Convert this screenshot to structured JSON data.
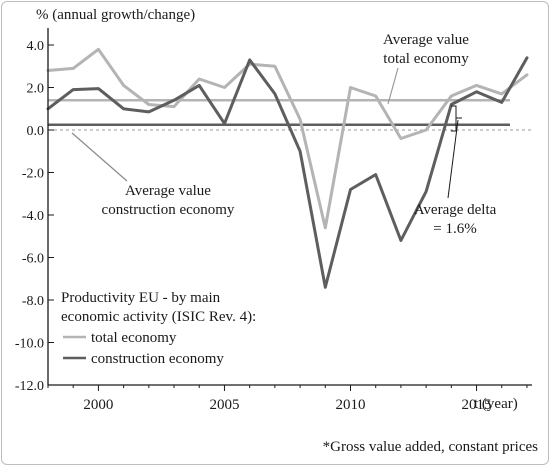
{
  "chart_data": {
    "type": "line",
    "ylabel": "% (annual growth/change)",
    "xlabel": "t (year)",
    "footnote": "*Gross value added, constant prices",
    "ylim": [
      -12.0,
      4.8
    ],
    "xlim": [
      1998,
      2017.2
    ],
    "y_ticks": [
      4.0,
      2.0,
      0.0,
      -2.0,
      -4.0,
      -6.0,
      -8.0,
      -10.0,
      -12.0
    ],
    "y_tick_labels": [
      "4.0",
      "2.0",
      "0.0",
      "-2.0",
      "-4.0",
      "-6.0",
      "-8.0",
      "-10.0",
      "-12.0"
    ],
    "x_ticks": [
      2000,
      2005,
      2010,
      2015
    ],
    "x_tick_labels": [
      "2000",
      "2005",
      "2010",
      "2015"
    ],
    "grid": false,
    "legend": {
      "title_line1": "Productivity EU - by main",
      "title_line2": "economic activity (ISIC Rev. 4):",
      "placement": "bottom-left"
    },
    "x": [
      1998,
      1999,
      2000,
      2001,
      2002,
      2003,
      2004,
      2005,
      2006,
      2007,
      2008,
      2009,
      2010,
      2011,
      2012,
      2013,
      2014,
      2015,
      2016,
      2017
    ],
    "series": [
      {
        "name": "total economy",
        "color": "#b4b4b4",
        "values": [
          2.8,
          2.9,
          3.8,
          2.1,
          1.2,
          1.1,
          2.4,
          2.0,
          3.1,
          3.0,
          0.5,
          -4.6,
          2.0,
          1.6,
          -0.4,
          0.0,
          1.6,
          2.1,
          1.7,
          2.6
        ]
      },
      {
        "name": "construction economy",
        "color": "#5e5e5e",
        "values": [
          1.0,
          1.9,
          1.95,
          1.0,
          0.85,
          1.4,
          2.1,
          0.3,
          3.3,
          1.7,
          -1.0,
          -7.4,
          -2.8,
          -2.1,
          -5.2,
          -2.9,
          1.2,
          1.8,
          1.3,
          3.4
        ]
      }
    ],
    "reference_lines": [
      {
        "value": 1.4,
        "color": "#b4b4b4"
      },
      {
        "value": 0.25,
        "color": "#5e5e5e"
      },
      {
        "value": 0.0,
        "color": "#9a9a9a",
        "dashed": true
      }
    ],
    "annotations": {
      "avg_total_line1": "Average value",
      "avg_total_line2": "total economy",
      "avg_construction_line1": "Average value",
      "avg_construction_line2": "construction economy",
      "avg_delta_line1": "Average delta",
      "avg_delta_line2": "= 1.6%"
    }
  }
}
